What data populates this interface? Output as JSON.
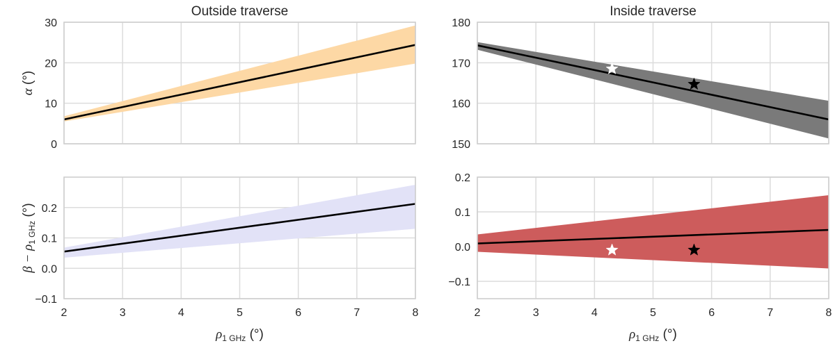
{
  "chart_data": [
    {
      "id": "outside_alpha",
      "type": "line",
      "title": "Outside traverse",
      "ylabel": {
        "sym": "α",
        "unit": " (°)"
      },
      "xlabel": null,
      "xlim": [
        2,
        8
      ],
      "ylim": [
        0,
        30
      ],
      "xticks": [
        2,
        3,
        4,
        5,
        6,
        7,
        8
      ],
      "yticks": [
        0,
        10,
        20,
        30
      ],
      "show_xticklabels": false,
      "band": {
        "color": "#fdd8a5",
        "x": [
          2,
          8
        ],
        "lower": [
          5.5,
          19.8
        ],
        "upper": [
          6.8,
          29.2
        ]
      },
      "line": {
        "color": "#000000",
        "x": [
          2,
          8
        ],
        "y": [
          6.0,
          24.4
        ]
      },
      "stars": []
    },
    {
      "id": "inside_alpha",
      "type": "line",
      "title": "Inside traverse",
      "ylabel": null,
      "xlabel": null,
      "xlim": [
        2,
        8
      ],
      "ylim": [
        150,
        180
      ],
      "xticks": [
        2,
        3,
        4,
        5,
        6,
        7,
        8
      ],
      "yticks": [
        150,
        160,
        170,
        180
      ],
      "show_xticklabels": false,
      "band": {
        "color": "#7a7a7a",
        "x": [
          2,
          8
        ],
        "lower": [
          173.2,
          151.3
        ],
        "upper": [
          175.1,
          160.6
        ]
      },
      "line": {
        "color": "#000000",
        "x": [
          2,
          8
        ],
        "y": [
          174.3,
          156.0
        ]
      },
      "stars": [
        {
          "x": 4.3,
          "y": 168.5,
          "color": "#ffffff"
        },
        {
          "x": 5.7,
          "y": 164.7,
          "color": "#000000"
        }
      ]
    },
    {
      "id": "outside_beta",
      "type": "line",
      "title": "",
      "ylabel": {
        "sym": "β − ρ",
        "sub": "1 GHz",
        "unit": " (°)"
      },
      "xlabel": {
        "sym": "ρ",
        "sub": "1 GHz",
        "unit": " (°)"
      },
      "xlim": [
        2,
        8
      ],
      "ylim": [
        -0.1,
        0.3
      ],
      "xticks": [
        2,
        3,
        4,
        5,
        6,
        7,
        8
      ],
      "yticks": [
        -0.1,
        0.0,
        0.1,
        0.2
      ],
      "yticklabels": [
        "−0.1",
        "0.0",
        "0.1",
        "0.2"
      ],
      "show_xticklabels": true,
      "xticklabels": [
        "2",
        "3",
        "4",
        "5",
        "6",
        "7",
        "8"
      ],
      "band": {
        "color": "#e2e2f7",
        "x": [
          2,
          8
        ],
        "lower": [
          0.035,
          0.13
        ],
        "upper": [
          0.068,
          0.275
        ]
      },
      "line": {
        "color": "#000000",
        "x": [
          2,
          8
        ],
        "y": [
          0.055,
          0.212
        ]
      },
      "stars": []
    },
    {
      "id": "inside_beta",
      "type": "line",
      "title": "",
      "ylabel": null,
      "xlabel": {
        "sym": "ρ",
        "sub": "1 GHz",
        "unit": " (°)"
      },
      "xlim": [
        2,
        8
      ],
      "ylim": [
        -0.15,
        0.2
      ],
      "xticks": [
        2,
        3,
        4,
        5,
        6,
        7,
        8
      ],
      "yticks": [
        -0.1,
        0.0,
        0.1,
        0.2
      ],
      "yticklabels": [
        "−0.1",
        "0.0",
        "0.1",
        "0.2"
      ],
      "show_xticklabels": true,
      "xticklabels": [
        "2",
        "3",
        "4",
        "5",
        "6",
        "7",
        "8"
      ],
      "band": {
        "color": "#cd5c5c",
        "x": [
          2,
          8
        ],
        "lower": [
          -0.015,
          -0.063
        ],
        "upper": [
          0.035,
          0.148
        ]
      },
      "line": {
        "color": "#000000",
        "x": [
          2,
          8
        ],
        "y": [
          0.009,
          0.048
        ]
      },
      "stars": [
        {
          "x": 4.3,
          "y": -0.01,
          "color": "#ffffff"
        },
        {
          "x": 5.7,
          "y": -0.01,
          "color": "#000000"
        }
      ]
    }
  ]
}
